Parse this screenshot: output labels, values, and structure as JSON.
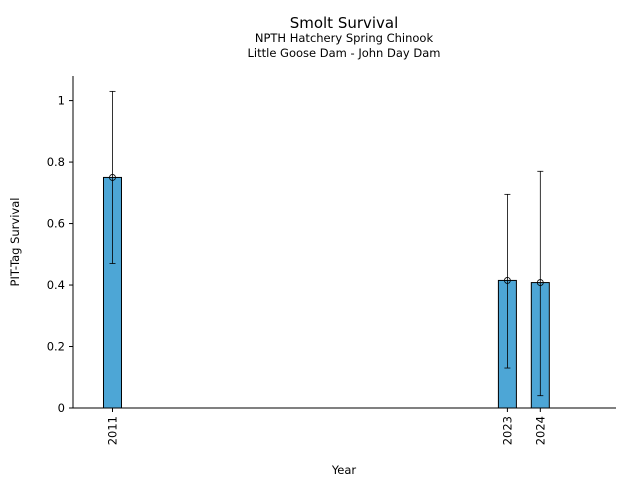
{
  "chart_data": {
    "type": "bar",
    "title": "Smolt Survival",
    "subtitle": [
      "NPTH Hatchery Spring Chinook",
      "Little Goose Dam - John Day Dam"
    ],
    "xlabel": "Year",
    "ylabel": "PIT-Tag Survival",
    "ylim": [
      0,
      1.08
    ],
    "xlim": [
      2009.8,
      2026.3
    ],
    "yticks": [
      0,
      0.2,
      0.4,
      0.6,
      0.8,
      1
    ],
    "ytick_labels": [
      "0",
      "0.2",
      "0.4",
      "0.6",
      "0.8",
      "1"
    ],
    "grid": false,
    "bars": [
      {
        "year": 2011,
        "label": "2011",
        "value": 0.75,
        "lower": 0.47,
        "upper": 1.03
      },
      {
        "year": 2023,
        "label": "2023",
        "value": 0.415,
        "lower": 0.13,
        "upper": 0.695
      },
      {
        "year": 2024,
        "label": "2024",
        "value": 0.408,
        "lower": 0.04,
        "upper": 0.77
      }
    ],
    "colors": {
      "bar_fill": "#4da6d6",
      "bar_edge": "#000000"
    }
  }
}
